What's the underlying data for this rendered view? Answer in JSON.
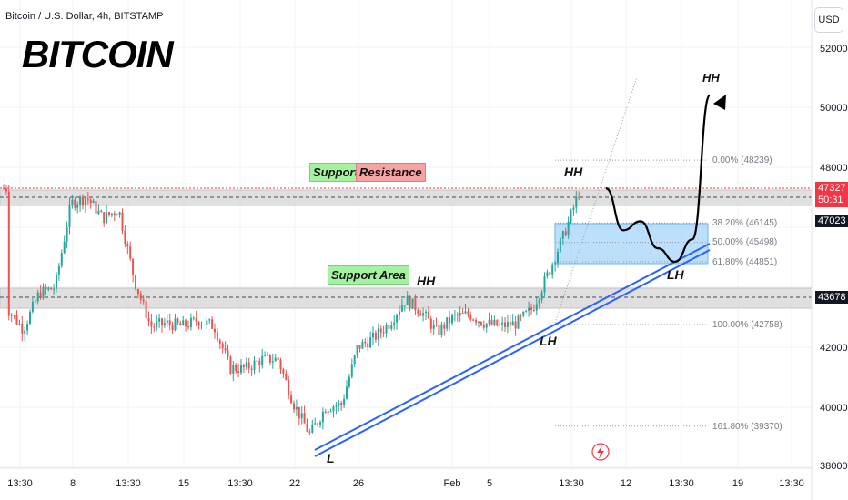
{
  "header": {
    "symbol_line": "Bitcoin / U.S. Dollar, 4h, BITSTAMP",
    "big_title": "BITCOIN"
  },
  "price_axis": {
    "currency_button": "USD",
    "ticks": [
      "52000",
      "50000",
      "48000",
      "44000",
      "42000",
      "40000",
      "38000"
    ],
    "last_price": "47327",
    "countdown": "50:31",
    "level_1": "47023",
    "level_2": "43678",
    "colors": {
      "last_price_bg": "#f23645",
      "level_bg": "#131722"
    }
  },
  "time_axis": {
    "ticks": [
      "13:30",
      "8",
      "13:30",
      "15",
      "13:30",
      "22",
      "26",
      "Feb",
      "5",
      "13:30",
      "12",
      "13:30",
      "19",
      "13:30"
    ]
  },
  "annotations": {
    "support_label": "Support",
    "resistance_label": "Resistance",
    "support_area_label": "Support Area",
    "hh_1": "HH",
    "hh_2": "HH",
    "hh_3": "HH",
    "l_1": "L",
    "lh_1": "LH",
    "lh_2": "LH",
    "colors": {
      "support_bg": "#a5f2a0",
      "resistance_bg": "#f5a3a3",
      "trendline": "#2962ff",
      "fib_zone": "#90caf9",
      "zone_gray": "#d9d9d9"
    }
  },
  "fibonacci": {
    "levels": [
      {
        "label": "0.00% (48239)",
        "price": 48239
      },
      {
        "label": "38.20% (46145)",
        "price": 46145
      },
      {
        "label": "50.00% (45498)",
        "price": 45498
      },
      {
        "label": "61.80% (44851)",
        "price": 44851
      },
      {
        "label": "100.00% (42758)",
        "price": 42758
      },
      {
        "label": "161.80% (39370)",
        "price": 39370
      }
    ]
  },
  "chart_data": {
    "type": "candlestick",
    "symbol": "Bitcoin / U.S. Dollar",
    "interval": "4h",
    "exchange": "BITSTAMP",
    "ylim": [
      38000,
      53000
    ],
    "y_ticks": [
      38000,
      40000,
      42000,
      44000,
      48000,
      50000,
      52000
    ],
    "last_price": 47327,
    "key_levels": [
      47023,
      43678
    ],
    "resistance_zone": [
      46800,
      47300
    ],
    "support_zone": [
      43300,
      43900
    ],
    "close_path": [
      {
        "x": "4 Jan",
        "y": 43300
      },
      {
        "x": "5 Jan",
        "y": 42600
      },
      {
        "x": "6 Jan",
        "y": 43800
      },
      {
        "x": "7 Jan",
        "y": 44000
      },
      {
        "x": "8 Jan",
        "y": 46800
      },
      {
        "x": "9 Jan",
        "y": 47000
      },
      {
        "x": "10 Jan",
        "y": 46300
      },
      {
        "x": "11 Jan",
        "y": 46600
      },
      {
        "x": "12 Jan",
        "y": 44200
      },
      {
        "x": "13 Jan",
        "y": 42700
      },
      {
        "x": "14 Jan",
        "y": 42800
      },
      {
        "x": "15 Jan",
        "y": 42700
      },
      {
        "x": "16 Jan",
        "y": 42900
      },
      {
        "x": "17 Jan",
        "y": 42700
      },
      {
        "x": "18 Jan",
        "y": 41300
      },
      {
        "x": "19 Jan",
        "y": 41300
      },
      {
        "x": "20 Jan",
        "y": 41600
      },
      {
        "x": "21 Jan",
        "y": 41600
      },
      {
        "x": "22 Jan",
        "y": 40100
      },
      {
        "x": "23 Jan",
        "y": 39100
      },
      {
        "x": "24 Jan",
        "y": 40000
      },
      {
        "x": "25 Jan",
        "y": 40100
      },
      {
        "x": "26 Jan",
        "y": 42000
      },
      {
        "x": "27 Jan",
        "y": 42300
      },
      {
        "x": "28 Jan",
        "y": 42800
      },
      {
        "x": "29 Jan",
        "y": 43600
      },
      {
        "x": "30 Jan",
        "y": 43200
      },
      {
        "x": "31 Jan",
        "y": 42500
      },
      {
        "x": "1 Feb",
        "y": 43000
      },
      {
        "x": "2 Feb",
        "y": 43100
      },
      {
        "x": "3 Feb",
        "y": 42800
      },
      {
        "x": "4 Feb",
        "y": 42700
      },
      {
        "x": "5 Feb",
        "y": 42800
      },
      {
        "x": "6 Feb",
        "y": 43300
      },
      {
        "x": "7 Feb",
        "y": 44500
      },
      {
        "x": "8 Feb",
        "y": 45800
      },
      {
        "x": "9 Feb",
        "y": 47300
      }
    ],
    "projection": [
      {
        "x": "9 Feb",
        "y": 47300
      },
      {
        "x": "10 Feb",
        "y": 45900
      },
      {
        "x": "11 Feb",
        "y": 46200
      },
      {
        "x": "12 Feb",
        "y": 45300
      },
      {
        "x": "13 Feb",
        "y": 44850
      },
      {
        "x": "14 Feb",
        "y": 45600
      },
      {
        "x": "15 Feb",
        "y": 50400
      }
    ]
  }
}
